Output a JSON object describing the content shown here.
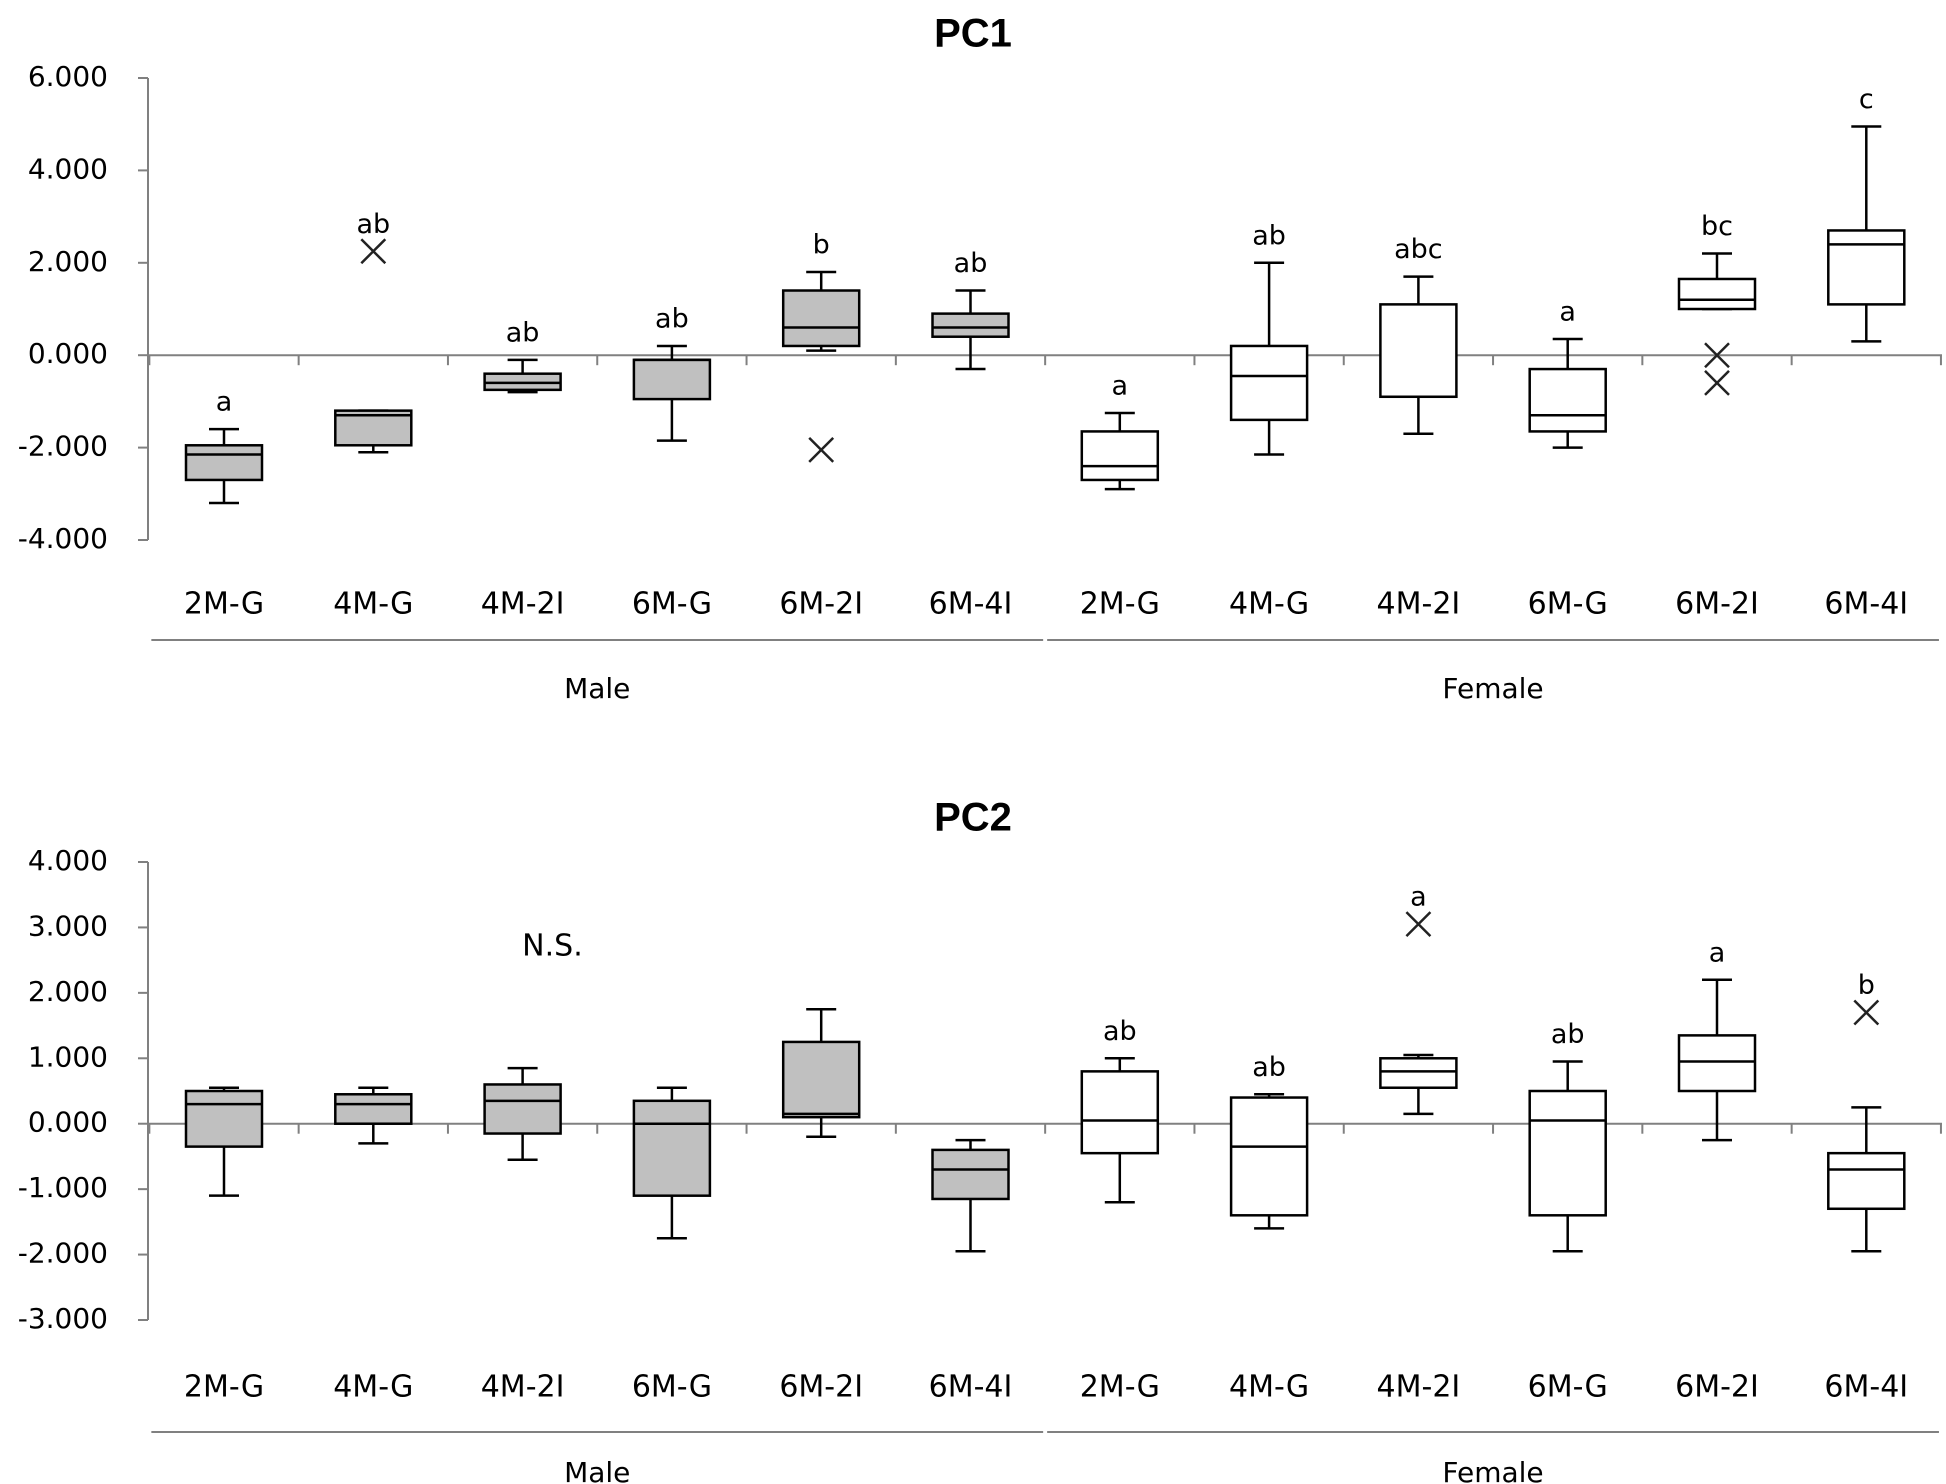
{
  "chart_data": [
    {
      "type": "box",
      "title": "PC1",
      "ylim": [
        -4,
        6
      ],
      "yticks": [
        6,
        4,
        2,
        0,
        -2,
        -4
      ],
      "ytick_labels": [
        "6.000",
        "4.000",
        "2.000",
        "0.000",
        "-2.000",
        "-4.000"
      ],
      "categories": [
        "2M-G",
        "4M-G",
        "4M-2I",
        "6M-G",
        "6M-2I",
        "6M-4I",
        "2M-G",
        "4M-G",
        "4M-2I",
        "6M-G",
        "6M-2I",
        "6M-4I"
      ],
      "groups": [
        {
          "name": "Male",
          "fill": "#c0c0c0",
          "start": 0,
          "end": 5
        },
        {
          "name": "Female",
          "fill": "#ffffff",
          "start": 6,
          "end": 11
        }
      ],
      "annotation": null,
      "boxes": [
        {
          "min": -3.2,
          "q1": -2.7,
          "median": -2.15,
          "q3": -1.95,
          "max": -1.6,
          "outliers": [],
          "sig": "a"
        },
        {
          "min": -2.1,
          "q1": -1.95,
          "median": -1.3,
          "q3": -1.2,
          "max": -1.2,
          "outliers": [
            2.25
          ],
          "sig": "ab"
        },
        {
          "min": -0.8,
          "q1": -0.75,
          "median": -0.6,
          "q3": -0.4,
          "max": -0.1,
          "outliers": [],
          "sig": "ab"
        },
        {
          "min": -1.85,
          "q1": -0.95,
          "median": -0.1,
          "q3": -0.1,
          "max": 0.2,
          "outliers": [],
          "sig": "ab"
        },
        {
          "min": 0.1,
          "q1": 0.2,
          "median": 0.6,
          "q3": 1.4,
          "max": 1.8,
          "outliers": [
            -2.05
          ],
          "sig": "b"
        },
        {
          "min": -0.3,
          "q1": 0.4,
          "median": 0.6,
          "q3": 0.9,
          "max": 1.4,
          "outliers": [],
          "sig": "ab"
        },
        {
          "min": -2.9,
          "q1": -2.7,
          "median": -2.4,
          "q3": -1.65,
          "max": -1.25,
          "outliers": [],
          "sig": "a"
        },
        {
          "min": -2.15,
          "q1": -1.4,
          "median": -0.45,
          "q3": 0.2,
          "max": 2.0,
          "outliers": [],
          "sig": "ab"
        },
        {
          "min": -1.7,
          "q1": -0.9,
          "median": -0.9,
          "q3": 1.1,
          "max": 1.7,
          "outliers": [],
          "sig": "abc"
        },
        {
          "min": -2.0,
          "q1": -1.65,
          "median": -1.3,
          "q3": -0.3,
          "max": 0.35,
          "outliers": [],
          "sig": "a"
        },
        {
          "min": 1.0,
          "q1": 1.0,
          "median": 1.2,
          "q3": 1.65,
          "max": 2.2,
          "outliers": [
            0.0,
            -0.6
          ],
          "sig": "bc"
        },
        {
          "min": 0.3,
          "q1": 1.1,
          "median": 2.4,
          "q3": 2.7,
          "max": 4.95,
          "outliers": [],
          "sig": "c"
        }
      ]
    },
    {
      "type": "box",
      "title": "PC2",
      "ylim": [
        -3,
        4
      ],
      "yticks": [
        4,
        3,
        2,
        1,
        0,
        -1,
        -2,
        -3
      ],
      "ytick_labels": [
        "4.000",
        "3.000",
        "2.000",
        "1.000",
        "0.000",
        "-1.000",
        "-2.000",
        "-3.000"
      ],
      "categories": [
        "2M-G",
        "4M-G",
        "4M-2I",
        "6M-G",
        "6M-2I",
        "6M-4I",
        "2M-G",
        "4M-G",
        "4M-2I",
        "6M-G",
        "6M-2I",
        "6M-4I"
      ],
      "groups": [
        {
          "name": "Male",
          "fill": "#c0c0c0",
          "start": 0,
          "end": 5
        },
        {
          "name": "Female",
          "fill": "#ffffff",
          "start": 6,
          "end": 11
        }
      ],
      "annotation": "N.S.",
      "boxes": [
        {
          "min": -1.1,
          "q1": -0.35,
          "median": 0.3,
          "q3": 0.5,
          "max": 0.55,
          "outliers": [],
          "sig": ""
        },
        {
          "min": -0.3,
          "q1": 0.0,
          "median": 0.3,
          "q3": 0.45,
          "max": 0.55,
          "outliers": [],
          "sig": ""
        },
        {
          "min": -0.55,
          "q1": -0.15,
          "median": 0.35,
          "q3": 0.6,
          "max": 0.85,
          "outliers": [],
          "sig": ""
        },
        {
          "min": -1.75,
          "q1": -1.1,
          "median": 0.0,
          "q3": 0.35,
          "max": 0.55,
          "outliers": [],
          "sig": ""
        },
        {
          "min": -0.2,
          "q1": 0.1,
          "median": 0.15,
          "q3": 1.25,
          "max": 1.75,
          "outliers": [],
          "sig": ""
        },
        {
          "min": -1.95,
          "q1": -1.15,
          "median": -0.7,
          "q3": -0.4,
          "max": -0.25,
          "outliers": [],
          "sig": ""
        },
        {
          "min": -1.2,
          "q1": -0.45,
          "median": 0.05,
          "q3": 0.8,
          "max": 1.0,
          "outliers": [],
          "sig": "ab"
        },
        {
          "min": -1.6,
          "q1": -1.4,
          "median": -0.35,
          "q3": 0.4,
          "max": 0.45,
          "outliers": [],
          "sig": "ab"
        },
        {
          "min": 0.15,
          "q1": 0.55,
          "median": 0.8,
          "q3": 1.0,
          "max": 1.05,
          "outliers": [
            3.05
          ],
          "sig": "a"
        },
        {
          "min": -1.95,
          "q1": -1.4,
          "median": 0.05,
          "q3": 0.5,
          "max": 0.95,
          "outliers": [],
          "sig": "ab"
        },
        {
          "min": -0.25,
          "q1": 0.5,
          "median": 0.95,
          "q3": 1.35,
          "max": 2.2,
          "outliers": [],
          "sig": "a"
        },
        {
          "min": -1.95,
          "q1": -1.3,
          "median": -0.7,
          "q3": -0.45,
          "max": 0.25,
          "outliers": [
            1.7
          ],
          "sig": "b"
        }
      ]
    }
  ]
}
